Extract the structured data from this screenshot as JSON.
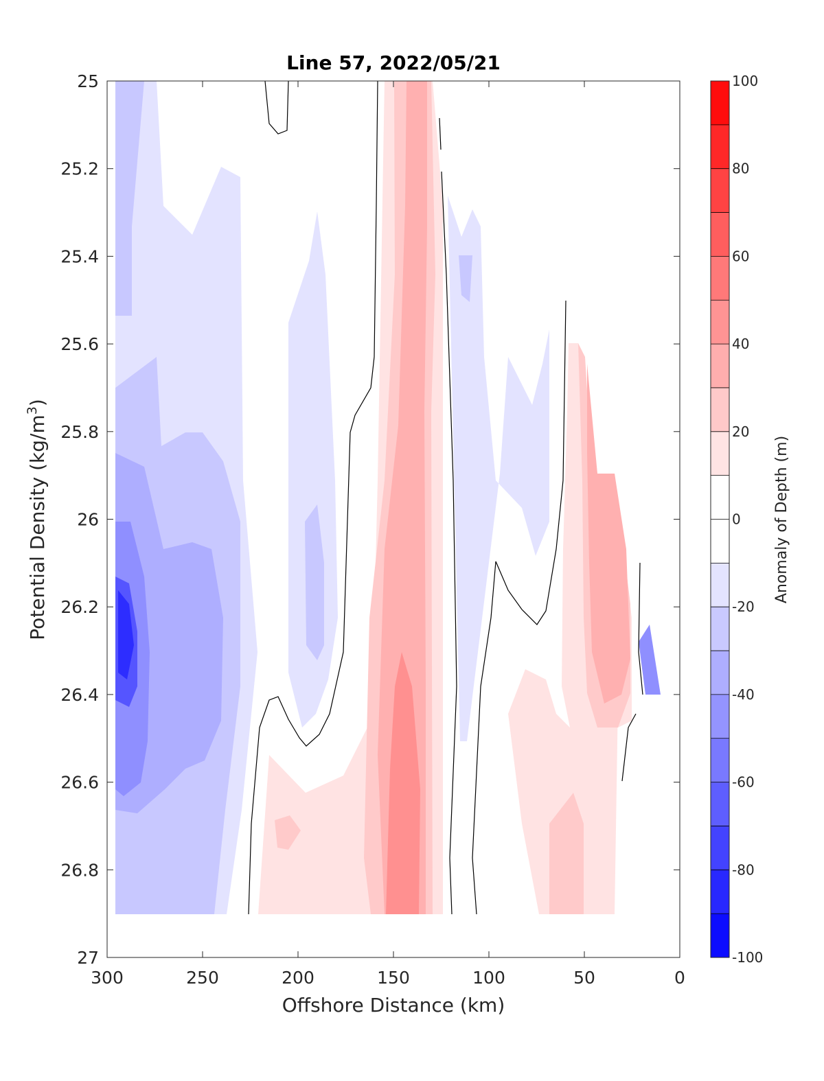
{
  "chart_data": {
    "type": "heatmap",
    "title": "Line 57, 2022/05/21",
    "xlabel": "Offshore Distance (km)",
    "ylabel": "Potential Density (kg/m",
    "ylabel_sup": "3",
    "ylabel_end": ")",
    "colorbar_label": "Anomaly of Depth (m)",
    "xlim": [
      300,
      0
    ],
    "ylim": [
      25,
      27
    ],
    "y_reversed": true,
    "x_reversed": true,
    "x_ticks": [
      300,
      250,
      200,
      150,
      100,
      50,
      0
    ],
    "y_ticks": [
      "25",
      "25.2",
      "25.4",
      "25.6",
      "25.8",
      "26",
      "26.2",
      "26.4",
      "26.6",
      "26.8",
      "27"
    ],
    "y_tick_values": [
      25,
      25.2,
      25.4,
      25.6,
      25.8,
      26,
      26.2,
      26.4,
      26.6,
      26.8,
      27
    ],
    "colorbar_ticks": [
      100,
      80,
      60,
      40,
      20,
      0,
      -20,
      -40,
      -60,
      -80,
      -100
    ],
    "colorbar_range": [
      -100,
      100
    ],
    "contour_step": 10,
    "zero_contour": true,
    "data_extent": {
      "x": [
        295,
        10
      ],
      "y": [
        25,
        26.9
      ]
    },
    "colors": {
      "negative": "#0000ff",
      "positive": "#ff0000",
      "zero": "#ffffff",
      "contour_line": "#000000"
    },
    "approximate_features": [
      {
        "x": 288,
        "y": 26.28,
        "value": -75
      },
      {
        "x": 265,
        "y": 26.35,
        "value": -35
      },
      {
        "x": 290,
        "y": 25.25,
        "value": -15
      },
      {
        "x": 194,
        "y": 26.15,
        "value": -30
      },
      {
        "x": 111,
        "y": 25.45,
        "value": -25
      },
      {
        "x": 85,
        "y": 25.8,
        "value": -15
      },
      {
        "x": 12,
        "y": 26.35,
        "value": -45
      },
      {
        "x": 143,
        "y": 25.3,
        "value": 25
      },
      {
        "x": 143,
        "y": 26.6,
        "value": 45
      },
      {
        "x": 205,
        "y": 26.72,
        "value": 20
      },
      {
        "x": 40,
        "y": 26.25,
        "value": 35
      },
      {
        "x": 70,
        "y": 26.75,
        "value": 20
      }
    ]
  }
}
